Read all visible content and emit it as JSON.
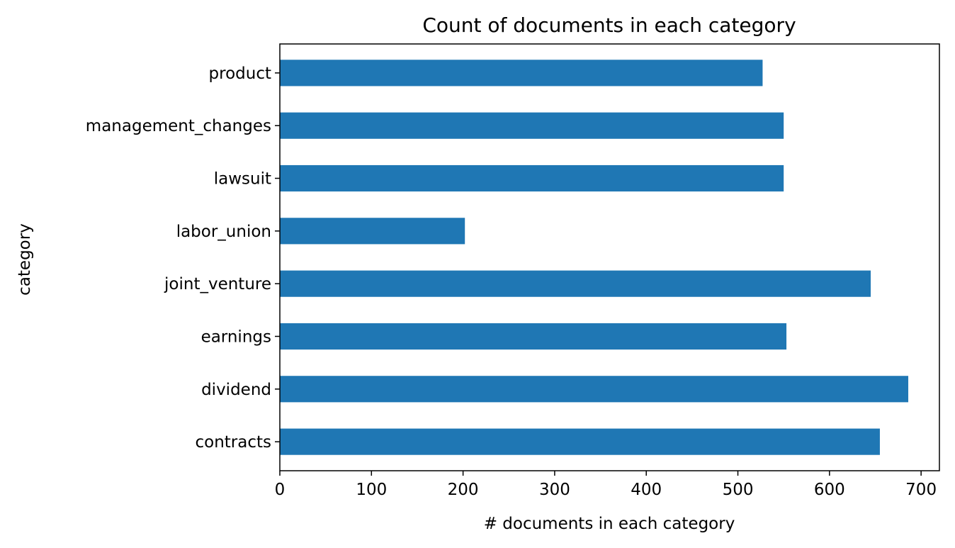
{
  "chart_data": {
    "type": "bar",
    "orientation": "horizontal",
    "title": "Count of documents in each category",
    "xlabel": "# documents in each category",
    "ylabel": "category",
    "categories": [
      "contracts",
      "dividend",
      "earnings",
      "joint_venture",
      "labor_union",
      "lawsuit",
      "management_changes",
      "product"
    ],
    "values": [
      655,
      686,
      553,
      645,
      202,
      550,
      550,
      527
    ],
    "xlim": [
      0,
      720
    ],
    "xticks": [
      0,
      100,
      200,
      300,
      400,
      500,
      600,
      700
    ],
    "grid": false,
    "legend": "none",
    "bar_color": "#1f77b4"
  }
}
